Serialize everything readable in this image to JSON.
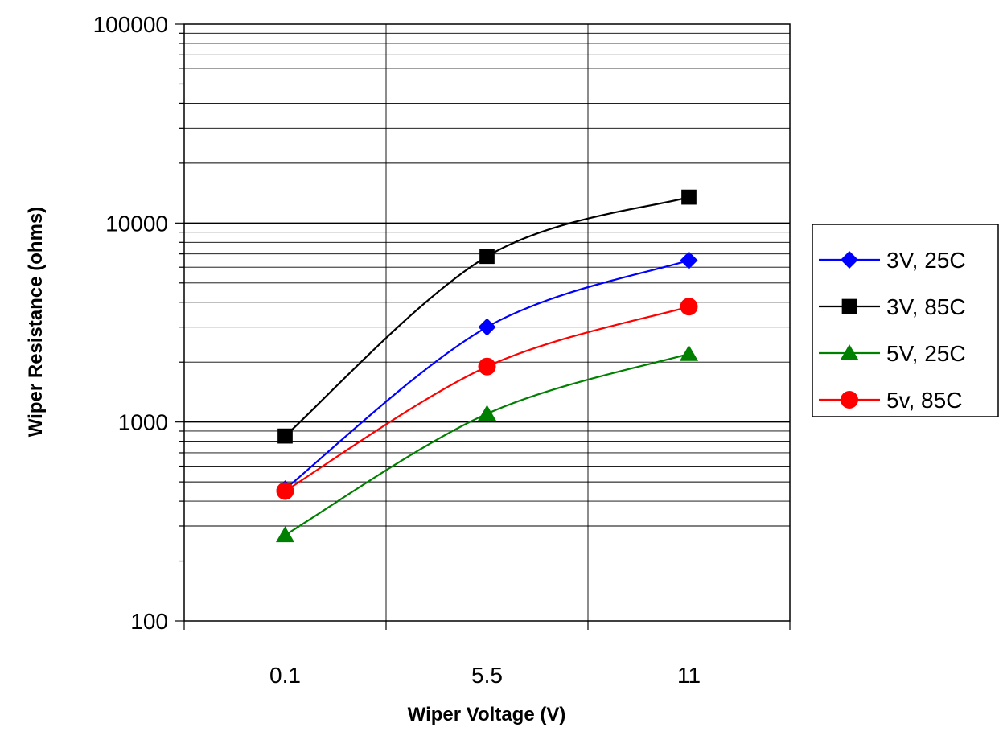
{
  "chart_data": {
    "type": "line",
    "title": "",
    "xlabel": "Wiper Voltage (V)",
    "ylabel": "Wiper Resistance (ohms)",
    "categories": [
      "0.1",
      "5.5",
      "11"
    ],
    "y_scale": "log",
    "ylim": [
      100,
      100000
    ],
    "y_ticks": [
      "100",
      "1000",
      "10000",
      "100000"
    ],
    "grid": true,
    "legend_position": "right",
    "series": [
      {
        "name": "3V, 25C",
        "values": [
          460,
          3000,
          6500
        ],
        "color": "#0000ff",
        "marker": "diamond"
      },
      {
        "name": "3V, 85C",
        "values": [
          850,
          6800,
          13500
        ],
        "color": "#000000",
        "marker": "square"
      },
      {
        "name": "5V, 25C",
        "values": [
          270,
          1100,
          2200
        ],
        "color": "#008000",
        "marker": "triangle"
      },
      {
        "name": "5v, 85C",
        "values": [
          450,
          1900,
          3800
        ],
        "color": "#ff0000",
        "marker": "circle"
      }
    ]
  }
}
